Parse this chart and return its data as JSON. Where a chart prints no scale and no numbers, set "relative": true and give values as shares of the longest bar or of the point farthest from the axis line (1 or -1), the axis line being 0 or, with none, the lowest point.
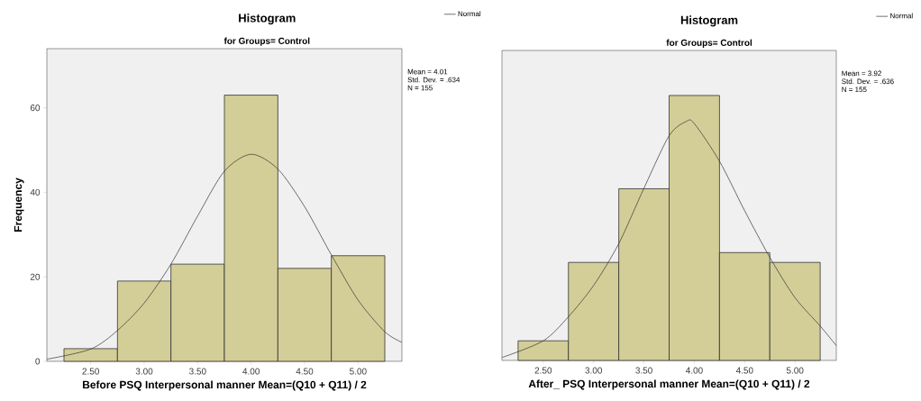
{
  "chart_data": [
    {
      "type": "histogram",
      "title": "Histogram",
      "subtitle": "for Groups= Control",
      "xlabel": "Before PSQ Interpersonal manner Mean=(Q10 + Q11) / 2",
      "ylabel": "Frequency",
      "bins": [
        2.25,
        2.75,
        3.25,
        3.75,
        4.25,
        4.75,
        5.25
      ],
      "series": [
        {
          "color": "#d3ce97",
          "values": [
            3,
            19,
            23,
            63,
            22,
            25
          ]
        },
        {
          "type": "line",
          "name": "Normal",
          "color": "#333333",
          "x": [
            2.09,
            2.5,
            2.75,
            3.0,
            3.25,
            3.5,
            3.75,
            4.0,
            4.25,
            4.5,
            4.75,
            5.0,
            5.25,
            5.41
          ],
          "values": [
            0.5,
            2.9,
            7.3,
            13.8,
            23,
            34.4,
            45,
            49,
            45.5,
            36.6,
            25.2,
            14.5,
            7,
            4.5
          ]
        }
      ],
      "xlim": [
        2.09,
        5.41
      ],
      "ylim": [
        0,
        74
      ],
      "xticks": [
        {
          "value": 2.5,
          "label": "2.50"
        },
        {
          "value": 3.0,
          "label": "3.00"
        },
        {
          "value": 3.5,
          "label": "3.50"
        },
        {
          "value": 4.0,
          "label": "4.00"
        },
        {
          "value": 4.5,
          "label": "4.50"
        },
        {
          "value": 5.0,
          "label": "5.00"
        }
      ],
      "yticks": [
        0,
        20,
        40,
        60
      ],
      "legend": "top right",
      "annotations": [
        "Mean = 4.01",
        "Std. Dev. = .634",
        "N = 155"
      ]
    },
    {
      "type": "histogram",
      "title": "Histogram",
      "subtitle": "for Groups= Control",
      "xlabel": "After_ PSQ Interpersonal manner Mean=(Q10 + Q11) / 2",
      "relative": true,
      "bins": [
        2.25,
        2.75,
        3.25,
        3.75,
        4.25,
        4.75,
        5.25
      ],
      "series": [
        {
          "color": "#d3ce97",
          "values": [
            0.074,
            0.37,
            0.648,
            1,
            0.407,
            0.37
          ]
        },
        {
          "type": "line",
          "name": "Normal",
          "color": "#333333",
          "x": [
            2.09,
            2.5,
            2.75,
            3.0,
            3.25,
            3.5,
            3.75,
            3.92,
            4.0,
            4.25,
            4.5,
            4.75,
            5.0,
            5.25,
            5.41
          ],
          "values": [
            0.011,
            0.074,
            0.165,
            0.283,
            0.441,
            0.65,
            0.848,
            0.902,
            0.894,
            0.752,
            0.565,
            0.389,
            0.237,
            0.13,
            0.056
          ]
        }
      ],
      "xlim": [
        2.09,
        5.41
      ],
      "xticks": [
        {
          "value": 2.5,
          "label": "2.50"
        },
        {
          "value": 3.0,
          "label": "3.00"
        },
        {
          "value": 3.5,
          "label": "3.50"
        },
        {
          "value": 4.0,
          "label": "4.00"
        },
        {
          "value": 4.5,
          "label": "4.50"
        },
        {
          "value": 5.0,
          "label": "5.00"
        }
      ],
      "legend": "top right",
      "annotations": [
        "Mean = 3.92",
        "Std. Dev. = .636",
        "N = 155"
      ]
    }
  ]
}
